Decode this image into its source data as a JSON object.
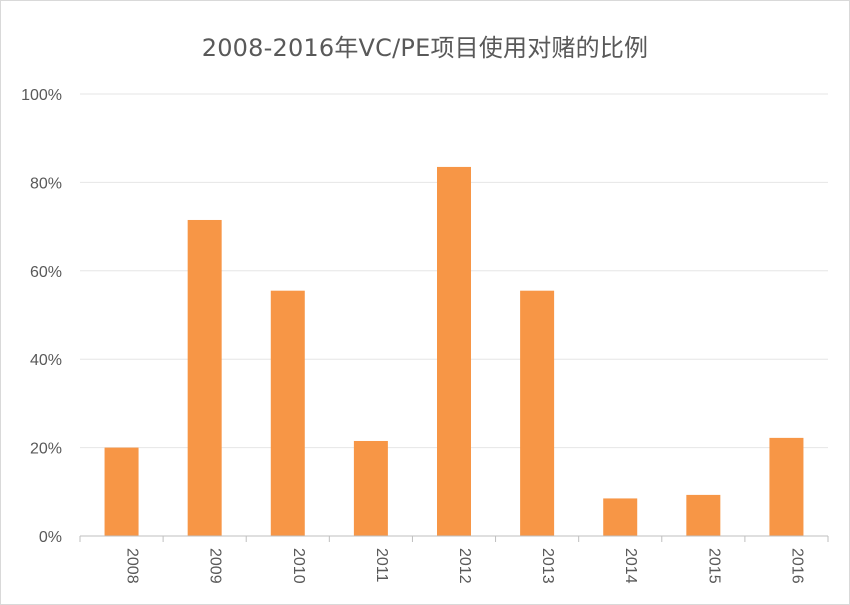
{
  "chart_data": {
    "type": "bar",
    "title": "2008-2016年VC/PE项目使用对赌的比例",
    "xlabel": "",
    "ylabel": "",
    "categories": [
      "2008",
      "2009",
      "2010",
      "2011",
      "2012",
      "2013",
      "2014",
      "2015",
      "2016"
    ],
    "values": [
      20,
      71.5,
      55.5,
      21.5,
      83.5,
      55.5,
      8.5,
      9.3,
      22.2
    ],
    "ylim": [
      0,
      100
    ],
    "yticks": [
      0,
      20,
      40,
      60,
      80,
      100
    ],
    "ytick_labels": [
      "0%",
      "20%",
      "40%",
      "60%",
      "80%",
      "100%"
    ],
    "grid": true,
    "legend": "none",
    "bar_color": "#F79646",
    "grid_color": "#e6e6e6",
    "axis_color": "#bfbfbf"
  }
}
